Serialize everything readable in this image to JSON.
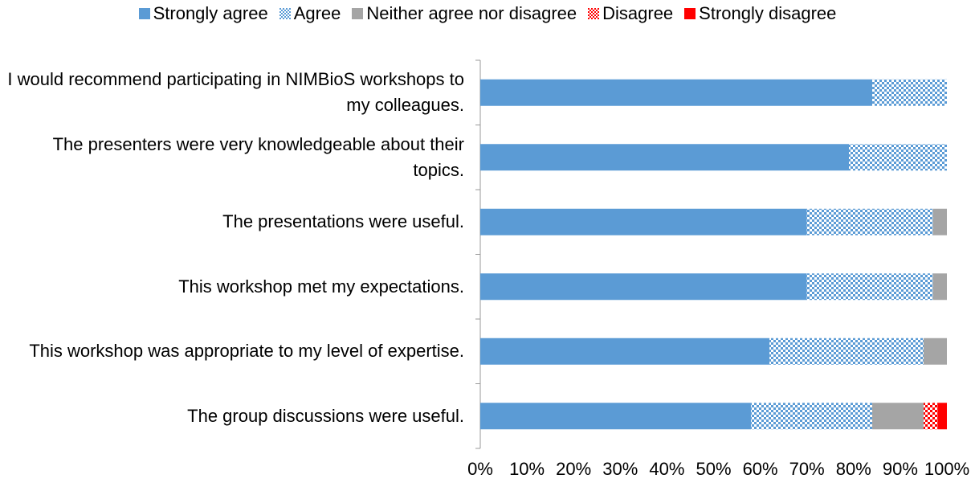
{
  "chart_data": {
    "type": "stacked-bar-horizontal",
    "categories": [
      "I would recommend participating in NIMBioS workshops to my colleagues.",
      "The presenters were very knowledgeable about their topics.",
      "The presentations were useful.",
      "This workshop met my expectations.",
      "This workshop was appropriate to my level of expertise.",
      "The group discussions were useful."
    ],
    "series": [
      {
        "name": "Strongly agree",
        "color": "#5b9bd5",
        "pattern": false,
        "values": [
          84,
          79,
          70,
          70,
          62,
          58
        ]
      },
      {
        "name": "Agree",
        "color": "#5b9bd5",
        "pattern": true,
        "values": [
          16,
          21,
          27,
          27,
          33,
          26
        ]
      },
      {
        "name": "Neither agree nor disagree",
        "color": "#a5a5a5",
        "pattern": false,
        "values": [
          0,
          0,
          3,
          3,
          5,
          11
        ]
      },
      {
        "name": "Disagree",
        "color": "#ff0000",
        "pattern": true,
        "values": [
          0,
          0,
          0,
          0,
          0,
          3
        ]
      },
      {
        "name": "Strongly disagree",
        "color": "#ff0000",
        "pattern": false,
        "values": [
          0,
          0,
          0,
          0,
          0,
          2
        ]
      }
    ],
    "xlim": [
      0,
      100
    ],
    "xticks": [
      {
        "value": 0,
        "label": "0%"
      },
      {
        "value": 10,
        "label": "10%"
      },
      {
        "value": 20,
        "label": "20%"
      },
      {
        "value": 30,
        "label": "30%"
      },
      {
        "value": 40,
        "label": "40%"
      },
      {
        "value": 50,
        "label": "50%"
      },
      {
        "value": 60,
        "label": "60%"
      },
      {
        "value": 70,
        "label": "70%"
      },
      {
        "value": 80,
        "label": "80%"
      },
      {
        "value": 90,
        "label": "90%"
      },
      {
        "value": 100,
        "label": "100%"
      }
    ],
    "grid": false,
    "legend": "top"
  }
}
